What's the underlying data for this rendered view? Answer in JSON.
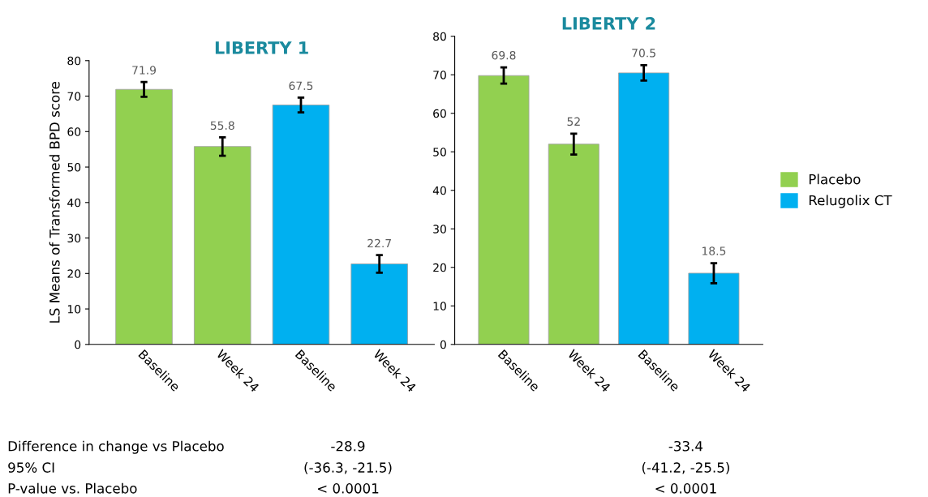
{
  "chart_data": [
    {
      "type": "bar",
      "title": "LIBERTY 1",
      "ylabel": "LS Means of Transformed BPD score",
      "categories": [
        "Baseline",
        "Week 24",
        "Baseline",
        "Week 24"
      ],
      "series": [
        {
          "color": "#92d050",
          "values": [
            71.9,
            55.8,
            null,
            null
          ],
          "errors": [
            2.1,
            2.6,
            null,
            null
          ]
        },
        {
          "color": "#00b0f0",
          "values": [
            null,
            null,
            67.5,
            22.7
          ],
          "errors": [
            null,
            null,
            2.1,
            2.5
          ]
        }
      ],
      "ylim": [
        0,
        80
      ],
      "yticks": [
        0,
        10,
        20,
        30,
        40,
        50,
        60,
        70,
        80
      ],
      "data_labels": true,
      "grid": false,
      "legend": false,
      "annotations": [
        "Difference in change vs Placebo",
        "95% CI",
        "P-value vs. Placebo",
        "-28.9",
        "(-36.3, -21.5)",
        "< 0.0001"
      ]
    },
    {
      "type": "bar",
      "title": "LIBERTY 2",
      "categories": [
        "Baseline",
        "Week 24",
        "Baseline",
        "Week 24"
      ],
      "series": [
        {
          "name": "Placebo",
          "color": "#92d050",
          "values": [
            69.8,
            52,
            null,
            null
          ],
          "errors": [
            2.1,
            2.7,
            null,
            null
          ]
        },
        {
          "name": "Relugolix CT",
          "color": "#00b0f0",
          "values": [
            null,
            null,
            70.5,
            18.5
          ],
          "errors": [
            null,
            null,
            2.0,
            2.6
          ]
        }
      ],
      "ylim": [
        0,
        80
      ],
      "yticks": [
        0,
        10,
        20,
        30,
        40,
        50,
        60,
        70,
        80
      ],
      "data_labels": true,
      "grid": false,
      "legend": "right",
      "annotations": [
        "-33.4",
        "(-41.2, -25.5)",
        "< 0.0001"
      ]
    }
  ]
}
